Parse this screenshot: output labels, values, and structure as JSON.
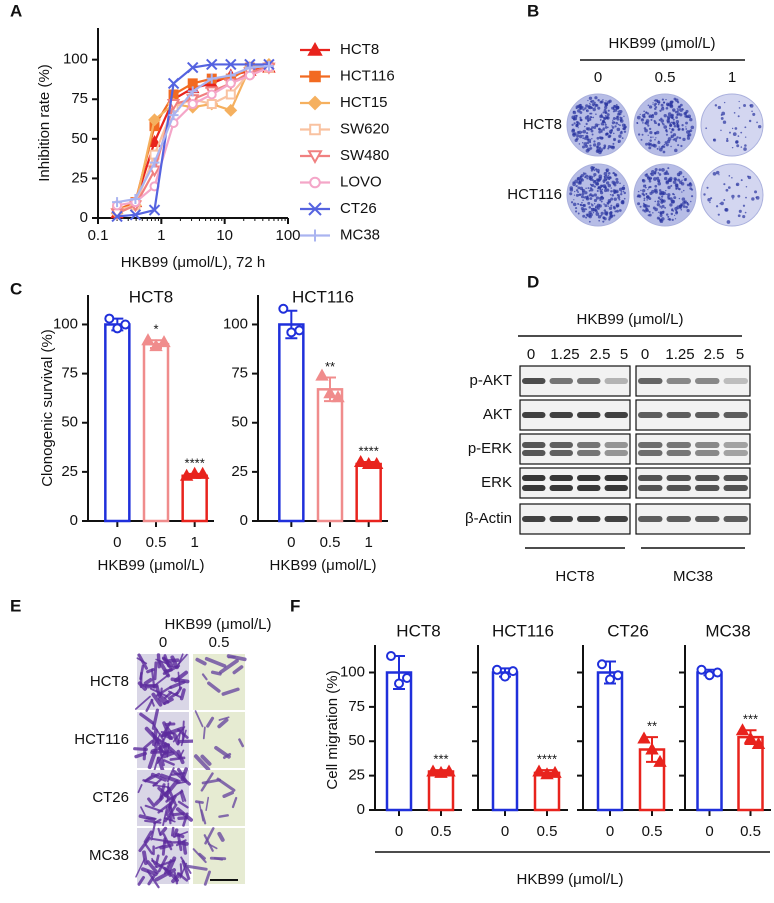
{
  "panel_labels": [
    "A",
    "B",
    "C",
    "D",
    "E",
    "F"
  ],
  "chart_data": [
    {
      "type": "line",
      "ylabel": "Inhibition rate (%)",
      "xlabel": "HKB99 (μmol/L), 72 h",
      "xscale": "log",
      "x": [
        0.2,
        0.39,
        0.78,
        1.56,
        3.13,
        6.25,
        12.5,
        25,
        50
      ],
      "xlim": [
        0.1,
        100
      ],
      "xticks": [
        0.1,
        1,
        10,
        100
      ],
      "ylim": [
        0,
        120
      ],
      "yticks": [
        0,
        25,
        50,
        75,
        100
      ],
      "legend": "right",
      "series": [
        {
          "name": "HCT8",
          "color": "#e8231d",
          "marker": "triangle",
          "values": [
            3,
            10,
            48,
            75,
            82,
            85,
            90,
            93,
            95
          ]
        },
        {
          "name": "HCT116",
          "color": "#f26a21",
          "marker": "square",
          "values": [
            5,
            10,
            58,
            78,
            85,
            88,
            88,
            95,
            95
          ]
        },
        {
          "name": "HCT15",
          "color": "#f5b05f",
          "marker": "diamond",
          "values": [
            3,
            8,
            62,
            72,
            70,
            72,
            68,
            95,
            97
          ]
        },
        {
          "name": "SW620",
          "color": "#f9c2a0",
          "marker": "square-open",
          "values": [
            5,
            8,
            40,
            70,
            75,
            72,
            78,
            92,
            95
          ]
        },
        {
          "name": "SW480",
          "color": "#f08080",
          "marker": "triangle-down-open",
          "values": [
            3,
            8,
            30,
            72,
            75,
            80,
            85,
            92,
            95
          ]
        },
        {
          "name": "LOVO",
          "color": "#f4a6c8",
          "marker": "circle-open",
          "values": [
            8,
            10,
            20,
            60,
            72,
            78,
            85,
            90,
            95
          ]
        },
        {
          "name": "CT26",
          "color": "#5563e0",
          "marker": "x",
          "values": [
            1,
            2,
            5,
            85,
            95,
            97,
            97,
            97,
            97
          ]
        },
        {
          "name": "MC38",
          "color": "#aab4f0",
          "marker": "plus",
          "values": [
            10,
            12,
            35,
            65,
            80,
            88,
            90,
            95,
            96
          ]
        }
      ]
    },
    {
      "type": "bar",
      "title": "HCT8",
      "ylabel": "Clonogenic survival (%)",
      "xlabel": "HKB99 (μmol/L)",
      "categories": [
        "0",
        "0.5",
        "1"
      ],
      "values": [
        100,
        90,
        23
      ],
      "errors": [
        3,
        2,
        1
      ],
      "points": [
        [
          103,
          98,
          100
        ],
        [
          92,
          89,
          91
        ],
        [
          23,
          24,
          24
        ]
      ],
      "annotations": [
        null,
        "*",
        "****"
      ],
      "colors": [
        "#1f2fdb",
        "#f08c8c",
        "#e8231d"
      ],
      "point_markers": [
        "circle-open",
        "triangle",
        "triangle"
      ],
      "ylim": [
        0,
        115
      ],
      "yticks": [
        0,
        25,
        50,
        75,
        100
      ]
    },
    {
      "type": "bar",
      "title": "HCT116",
      "xlabel": "HKB99 (μmol/L)",
      "categories": [
        "0",
        "0.5",
        "1"
      ],
      "values": [
        100,
        67,
        29
      ],
      "errors": [
        7,
        6,
        1
      ],
      "points": [
        [
          108,
          96,
          97
        ],
        [
          74,
          65,
          63
        ],
        [
          30,
          29,
          29
        ]
      ],
      "annotations": [
        null,
        "**",
        "****"
      ],
      "colors": [
        "#1f2fdb",
        "#f08c8c",
        "#e8231d"
      ],
      "point_markers": [
        "circle-open",
        "triangle",
        "triangle"
      ],
      "ylim": [
        0,
        115
      ],
      "yticks": [
        0,
        25,
        50,
        75,
        100
      ]
    },
    {
      "type": "bar",
      "title": "HCT8",
      "ylabel": "Cell migration (%)",
      "categories": [
        "0",
        "0.5"
      ],
      "values": [
        100,
        28
      ],
      "errors": [
        12,
        1
      ],
      "points": [
        [
          112,
          92,
          96
        ],
        [
          28,
          27,
          28
        ]
      ],
      "annotations": [
        null,
        "***"
      ],
      "colors": [
        "#1f2fdb",
        "#e8231d"
      ],
      "point_markers": [
        "circle-open",
        "triangle"
      ],
      "ylim": [
        0,
        120
      ],
      "yticks": [
        0,
        25,
        50,
        75,
        100
      ]
    },
    {
      "type": "bar",
      "title": "HCT116",
      "categories": [
        "0",
        "0.5"
      ],
      "values": [
        100,
        27
      ],
      "errors": [
        3,
        2
      ],
      "points": [
        [
          102,
          97,
          101
        ],
        [
          28,
          26,
          27
        ]
      ],
      "annotations": [
        null,
        "****"
      ],
      "colors": [
        "#1f2fdb",
        "#e8231d"
      ],
      "point_markers": [
        "circle-open",
        "triangle"
      ],
      "ylim": [
        0,
        120
      ],
      "yticks": [
        0,
        25,
        50,
        75,
        100
      ],
      "ytick_labels": false
    },
    {
      "type": "bar",
      "title": "CT26",
      "categories": [
        "0",
        "0.5"
      ],
      "values": [
        100,
        44
      ],
      "errors": [
        8,
        9
      ],
      "points": [
        [
          106,
          95,
          98
        ],
        [
          52,
          44,
          35
        ]
      ],
      "annotations": [
        null,
        "**"
      ],
      "colors": [
        "#1f2fdb",
        "#e8231d"
      ],
      "point_markers": [
        "circle-open",
        "triangle"
      ],
      "ylim": [
        0,
        120
      ],
      "yticks": [
        0,
        25,
        50,
        75,
        100
      ],
      "ytick_labels": false
    },
    {
      "type": "bar",
      "title": "MC38",
      "categories": [
        "0",
        "0.5"
      ],
      "values": [
        100,
        53
      ],
      "errors": [
        2,
        5
      ],
      "points": [
        [
          102,
          98,
          100
        ],
        [
          58,
          52,
          48
        ]
      ],
      "annotations": [
        null,
        "***"
      ],
      "colors": [
        "#1f2fdb",
        "#e8231d"
      ],
      "point_markers": [
        "circle-open",
        "triangle"
      ],
      "ylim": [
        0,
        120
      ],
      "yticks": [
        0,
        25,
        50,
        75,
        100
      ],
      "ytick_labels": false
    }
  ],
  "panel_f": {
    "xlabel": "HKB99 (μmol/L)"
  },
  "colonies_b": {
    "title": "HKB99 (μmol/L)",
    "doses": [
      "0",
      "0.5",
      "1"
    ],
    "rows": [
      "HCT8",
      "HCT116"
    ]
  },
  "blot_d": {
    "title": "HKB99 (μmol/L)",
    "doses": [
      "0",
      "1.25",
      "2.5",
      "5"
    ],
    "proteins": [
      "p-AKT",
      "AKT",
      "p-ERK",
      "ERK",
      "β-Actin"
    ],
    "cells": [
      "HCT8",
      "MC38"
    ]
  },
  "migration_e": {
    "title": "HKB99 (μmol/L)",
    "doses": [
      "0",
      "0.5"
    ],
    "rows": [
      "HCT8",
      "HCT116",
      "CT26",
      "MC38"
    ]
  }
}
